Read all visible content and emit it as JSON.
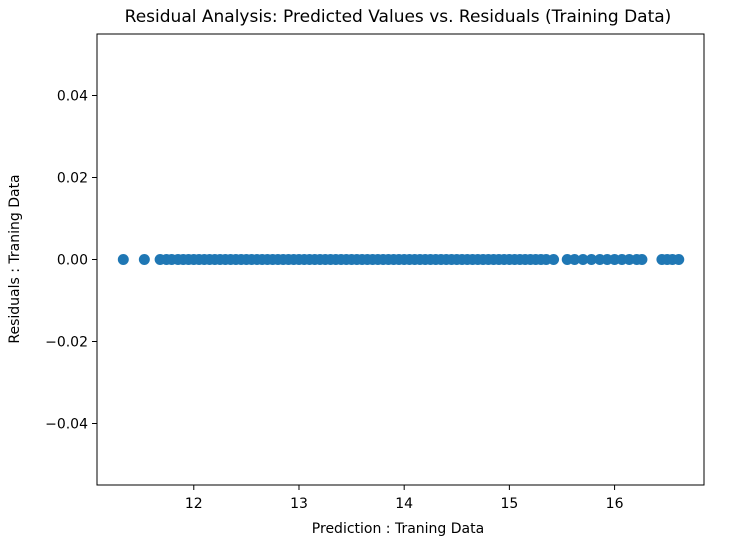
{
  "chart_data": {
    "type": "scatter",
    "title": "Residual Analysis: Predicted Values vs. Residuals (Training Data)",
    "xlabel": "Prediction : Traning Data",
    "ylabel": "Residuals : Traning Data",
    "xlim": [
      11.08,
      16.85
    ],
    "ylim": [
      -0.055,
      0.055
    ],
    "xticks": [
      12,
      13,
      14,
      15,
      16
    ],
    "xtick_labels": [
      "12",
      "13",
      "14",
      "15",
      "16"
    ],
    "yticks": [
      0.04,
      0.02,
      0.0,
      -0.02,
      -0.04
    ],
    "ytick_labels": [
      "0.04",
      "0.02",
      "0.00",
      "−0.02",
      "−0.04"
    ],
    "grid": false,
    "marker_color": "#1f77b4",
    "x": [
      11.33,
      11.53,
      11.68,
      11.74,
      11.79,
      11.85,
      11.9,
      11.95,
      12.0,
      12.05,
      12.1,
      12.15,
      12.2,
      12.25,
      12.3,
      12.35,
      12.4,
      12.45,
      12.5,
      12.55,
      12.6,
      12.65,
      12.7,
      12.75,
      12.8,
      12.85,
      12.9,
      12.95,
      13.0,
      13.05,
      13.1,
      13.15,
      13.2,
      13.25,
      13.3,
      13.35,
      13.4,
      13.45,
      13.5,
      13.55,
      13.6,
      13.65,
      13.7,
      13.75,
      13.8,
      13.85,
      13.9,
      13.95,
      14.0,
      14.05,
      14.1,
      14.15,
      14.2,
      14.25,
      14.3,
      14.35,
      14.4,
      14.45,
      14.5,
      14.55,
      14.6,
      14.65,
      14.7,
      14.75,
      14.8,
      14.85,
      14.9,
      14.95,
      15.0,
      15.05,
      15.1,
      15.15,
      15.2,
      15.25,
      15.3,
      15.35,
      15.42,
      15.55,
      15.62,
      15.7,
      15.78,
      15.86,
      15.93,
      16.0,
      16.07,
      16.14,
      16.21,
      16.26,
      16.45,
      16.5,
      16.55,
      16.61
    ],
    "y": [
      0.0,
      0.0,
      0.0,
      0.0,
      0.0,
      0.0,
      0.0,
      0.0,
      0.0,
      0.0,
      0.0,
      0.0,
      0.0,
      0.0,
      0.0,
      0.0,
      0.0,
      0.0,
      0.0,
      0.0,
      0.0,
      0.0,
      0.0,
      0.0,
      0.0,
      0.0,
      0.0,
      0.0,
      0.0,
      0.0,
      0.0,
      0.0,
      0.0,
      0.0,
      0.0,
      0.0,
      0.0,
      0.0,
      0.0,
      0.0,
      0.0,
      0.0,
      0.0,
      0.0,
      0.0,
      0.0,
      0.0,
      0.0,
      0.0,
      0.0,
      0.0,
      0.0,
      0.0,
      0.0,
      0.0,
      0.0,
      0.0,
      0.0,
      0.0,
      0.0,
      0.0,
      0.0,
      0.0,
      0.0,
      0.0,
      0.0,
      0.0,
      0.0,
      0.0,
      0.0,
      0.0,
      0.0,
      0.0,
      0.0,
      0.0,
      0.0,
      0.0,
      0.0,
      0.0,
      0.0,
      0.0,
      0.0,
      0.0,
      0.0,
      0.0,
      0.0,
      0.0,
      0.0,
      0.0,
      0.0,
      0.0,
      0.0
    ]
  }
}
